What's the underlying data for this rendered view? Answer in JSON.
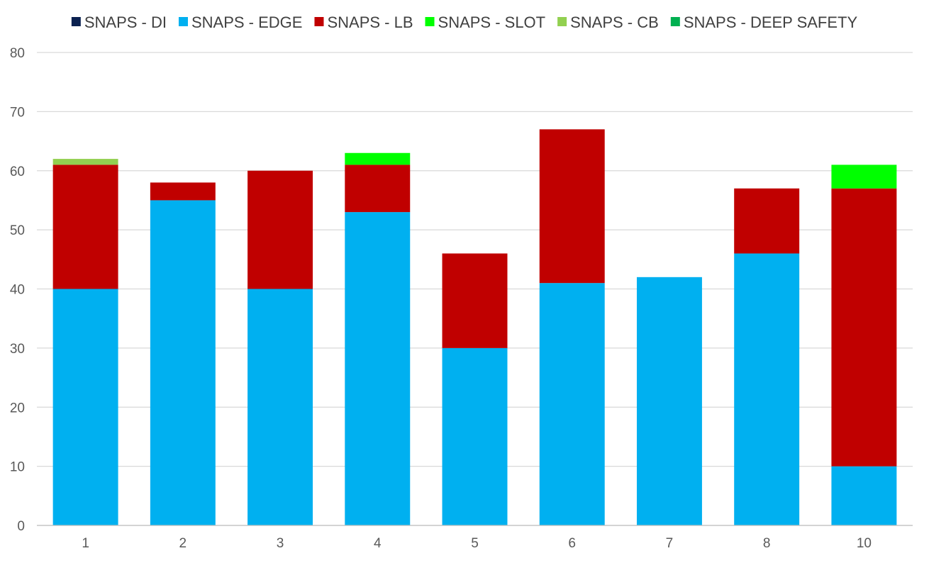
{
  "chart_data": {
    "type": "bar",
    "stacked": true,
    "title": "",
    "xlabel": "",
    "ylabel": "",
    "categories": [
      "1",
      "2",
      "3",
      "4",
      "5",
      "6",
      "7",
      "8",
      "10"
    ],
    "ylim": [
      0,
      80
    ],
    "yticks": [
      0,
      10,
      20,
      30,
      40,
      50,
      60,
      70,
      80
    ],
    "grid": true,
    "legend_position": "top",
    "series": [
      {
        "name": "SNAPS - DI",
        "color": "#0b2150",
        "values": [
          0,
          0,
          0,
          0,
          0,
          0,
          0,
          0,
          0
        ]
      },
      {
        "name": "SNAPS - EDGE",
        "color": "#00b0f0",
        "values": [
          40,
          55,
          40,
          53,
          30,
          41,
          42,
          46,
          10
        ]
      },
      {
        "name": "SNAPS - LB",
        "color": "#c00000",
        "values": [
          21,
          3,
          20,
          8,
          16,
          26,
          0,
          11,
          47
        ]
      },
      {
        "name": "SNAPS - SLOT",
        "color": "#00ff00",
        "values": [
          0,
          0,
          0,
          2,
          0,
          0,
          0,
          0,
          4
        ]
      },
      {
        "name": "SNAPS - CB",
        "color": "#92d050",
        "values": [
          1,
          0,
          0,
          0,
          0,
          0,
          0,
          0,
          0
        ]
      },
      {
        "name": "SNAPS - DEEP SAFETY",
        "color": "#00b050",
        "values": [
          0,
          0,
          0,
          0,
          0,
          0,
          0,
          0,
          0
        ]
      }
    ]
  }
}
